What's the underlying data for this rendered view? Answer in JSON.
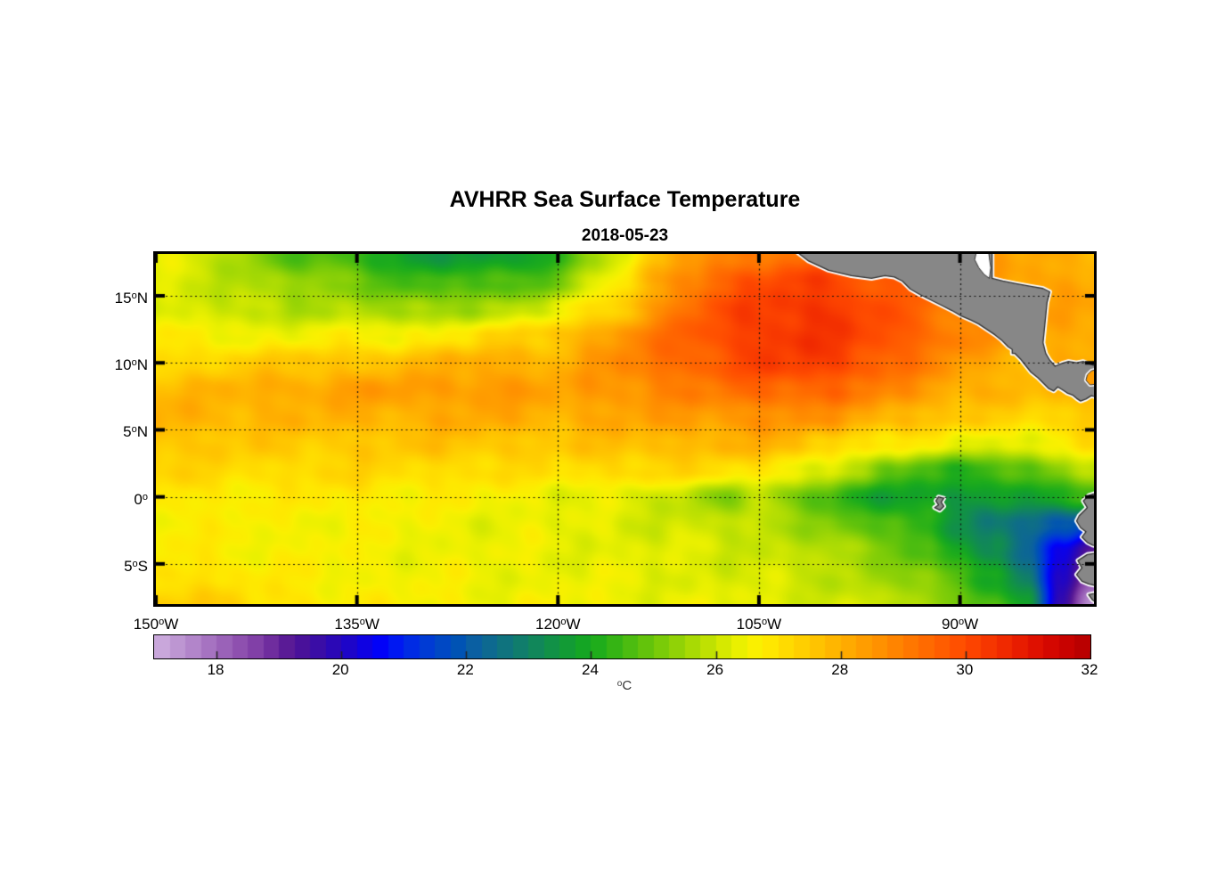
{
  "title": "AVHRR Sea Surface Temperature",
  "subtitle": "2018-05-23",
  "colorbar_unit_sup": "o",
  "colorbar_unit_main": "C",
  "chart_data": {
    "type": "heatmap",
    "title": "AVHRR Sea Surface Temperature",
    "date": "2018-05-23",
    "lon_range": [
      -150,
      -80
    ],
    "lat_range": [
      -8,
      18.125
    ],
    "grid_on": true,
    "axes": {
      "xticks": [
        {
          "lon": -150,
          "num": "150",
          "hem": "W"
        },
        {
          "lon": -135,
          "num": "135",
          "hem": "W"
        },
        {
          "lon": -120,
          "num": "120",
          "hem": "W"
        },
        {
          "lon": -105,
          "num": "105",
          "hem": "W"
        },
        {
          "lon": -90,
          "num": "90",
          "hem": "W"
        }
      ],
      "yticks": [
        {
          "lat": 15,
          "num": "15",
          "hem": "N"
        },
        {
          "lat": 10,
          "num": "10",
          "hem": "N"
        },
        {
          "lat": 5,
          "num": "5",
          "hem": "N"
        },
        {
          "lat": 0,
          "num": "0",
          "hem": ""
        },
        {
          "lat": -5,
          "num": "5",
          "hem": "S"
        }
      ],
      "deg_symbol": "o"
    },
    "colormap": {
      "min": 17,
      "max": 32,
      "step": 0.25,
      "colors": [
        "#C9A7DB",
        "#BD96D2",
        "#B285CA",
        "#A673C1",
        "#9A62B8",
        "#8E50AF",
        "#8140A7",
        "#6F2D9E",
        "#5A1B96",
        "#49119A",
        "#3A0DA6",
        "#2B08B6",
        "#1D05C9",
        "#0F02E2",
        "#0202F8",
        "#0018F2",
        "#002BE4",
        "#003BD4",
        "#0048C4",
        "#0053B4",
        "#0A5FA2",
        "#0D6990",
        "#0F737E",
        "#107D6C",
        "#11875A",
        "#119147",
        "#129B35",
        "#14A524",
        "#1FAD1B",
        "#35B414",
        "#4CBC10",
        "#63C30B",
        "#7ACB08",
        "#91D206",
        "#A8DA04",
        "#BFE102",
        "#D6E900",
        "#EAF000",
        "#FAF000",
        "#FFE700",
        "#FFDB00",
        "#FFCF00",
        "#FFC300",
        "#FFB600",
        "#FFAA00",
        "#FF9D00",
        "#FF9100",
        "#FF8400",
        "#FF7700",
        "#FF6A00",
        "#FF5D00",
        "#FF5000",
        "#FC4300",
        "#F63600",
        "#F02900",
        "#E81C00",
        "#DF1000",
        "#D40700",
        "#C80200",
        "#BA0000",
        "#AA0000"
      ]
    },
    "colorbar": {
      "ticks": [
        18,
        20,
        22,
        24,
        26,
        28,
        30,
        32
      ],
      "unit": "°C"
    },
    "grid": {
      "lons": [
        -150,
        -147.5,
        -145,
        -142.5,
        -140,
        -137.5,
        -135,
        -132.5,
        -130,
        -127.5,
        -125,
        -122.5,
        -120,
        -117.5,
        -115,
        -112.5,
        -110,
        -107.5,
        -105,
        -102.5,
        -100,
        -97.5,
        -95,
        -92.5,
        -90,
        -87.5,
        -85,
        -82.5,
        -80
      ],
      "lats": [
        18,
        16,
        14,
        12,
        10,
        8,
        6,
        4,
        2,
        0,
        -2,
        -4,
        -6,
        -8
      ],
      "sst_c": [
        [
          26.2,
          26.0,
          25.7,
          25.2,
          24.6,
          24.5,
          24.2,
          23.8,
          23.4,
          23.6,
          23.4,
          23.6,
          24.0,
          25.5,
          26.3,
          27.5,
          28.3,
          28.8,
          29.0,
          29.2,
          29.3,
          29.3,
          29.2,
          28.8,
          28.4,
          28.2,
          28.0,
          27.9,
          27.9
        ],
        [
          26.2,
          26.0,
          25.8,
          25.5,
          25.3,
          25.2,
          25.0,
          24.6,
          24.3,
          24.5,
          24.4,
          24.6,
          25.0,
          26.0,
          26.8,
          28.0,
          29.0,
          29.5,
          29.8,
          30.0,
          30.0,
          29.8,
          29.5,
          29.2,
          28.8,
          28.4,
          28.2,
          28.1,
          28.0
        ],
        [
          26.2,
          26.0,
          25.9,
          25.7,
          25.6,
          25.7,
          25.6,
          25.4,
          25.3,
          25.5,
          25.6,
          25.8,
          26.2,
          26.8,
          27.5,
          28.5,
          29.3,
          29.8,
          30.1,
          30.3,
          30.3,
          30.0,
          29.6,
          29.2,
          28.8,
          28.4,
          28.2,
          28.1,
          28.1
        ],
        [
          26.6,
          26.5,
          26.5,
          26.4,
          26.4,
          26.5,
          26.5,
          26.5,
          26.6,
          26.8,
          27.0,
          27.2,
          27.5,
          28.0,
          28.5,
          29.0,
          29.5,
          29.9,
          30.2,
          30.3,
          30.2,
          30.0,
          29.7,
          29.3,
          28.8,
          28.4,
          28.1,
          28.0,
          28.0
        ],
        [
          27.0,
          27.1,
          27.2,
          27.3,
          27.4,
          27.5,
          27.5,
          27.6,
          27.7,
          27.9,
          28.0,
          27.9,
          27.8,
          28.2,
          28.7,
          29.1,
          29.4,
          29.7,
          30.0,
          30.1,
          30.1,
          29.8,
          29.3,
          28.8,
          28.3,
          27.9,
          27.7,
          27.9,
          27.8
        ],
        [
          27.6,
          27.7,
          27.8,
          27.9,
          28.0,
          28.1,
          28.2,
          28.3,
          28.2,
          28.3,
          28.4,
          28.2,
          28.1,
          28.3,
          28.5,
          28.7,
          28.8,
          29.0,
          29.3,
          29.4,
          29.3,
          29.0,
          28.6,
          28.3,
          28.0,
          27.8,
          27.7,
          27.6,
          27.7
        ],
        [
          27.9,
          27.8,
          27.8,
          27.8,
          27.8,
          27.8,
          27.8,
          27.9,
          27.9,
          28.0,
          28.0,
          27.9,
          27.9,
          28.0,
          28.1,
          28.2,
          28.3,
          28.4,
          28.5,
          28.5,
          28.4,
          28.1,
          27.8,
          27.6,
          27.4,
          27.2,
          27.1,
          27.2,
          27.4
        ],
        [
          27.6,
          27.4,
          27.4,
          27.4,
          27.3,
          27.4,
          27.4,
          27.4,
          27.5,
          27.5,
          27.5,
          27.4,
          27.4,
          27.5,
          27.6,
          27.7,
          27.7,
          27.8,
          27.8,
          27.7,
          27.2,
          26.9,
          26.7,
          26.5,
          26.3,
          26.2,
          26.3,
          26.5,
          26.9
        ],
        [
          27.2,
          27.1,
          27.0,
          27.0,
          27.0,
          27.1,
          27.1,
          27.0,
          27.0,
          27.0,
          27.0,
          26.9,
          26.9,
          27.0,
          27.1,
          27.1,
          27.0,
          26.9,
          26.8,
          26.5,
          26.0,
          25.4,
          24.8,
          24.4,
          24.2,
          24.3,
          24.6,
          25.2,
          25.8
        ],
        [
          26.8,
          26.7,
          26.7,
          26.6,
          26.6,
          26.7,
          26.7,
          26.6,
          26.6,
          26.5,
          26.5,
          26.4,
          26.3,
          26.2,
          26.1,
          25.9,
          25.6,
          25.2,
          25.6,
          25.0,
          24.4,
          23.9,
          23.7,
          23.6,
          23.4,
          23.5,
          23.7,
          24.0,
          24.3
        ],
        [
          26.6,
          26.6,
          26.5,
          26.5,
          26.4,
          26.5,
          26.5,
          26.4,
          26.4,
          26.3,
          26.3,
          26.3,
          26.2,
          26.2,
          26.1,
          26.0,
          25.9,
          25.8,
          25.7,
          25.5,
          25.2,
          24.6,
          24.5,
          24.0,
          23.3,
          22.7,
          22.3,
          21.8,
          21.3
        ],
        [
          26.6,
          26.6,
          26.6,
          26.5,
          26.5,
          26.5,
          26.4,
          26.4,
          26.4,
          26.3,
          26.3,
          26.3,
          26.3,
          26.2,
          26.2,
          26.1,
          26.1,
          26.0,
          25.9,
          25.8,
          25.6,
          25.3,
          25.0,
          24.5,
          23.8,
          23.0,
          22.0,
          20.5,
          19.0
        ],
        [
          26.9,
          27.0,
          26.8,
          26.7,
          26.6,
          26.5,
          26.5,
          26.4,
          26.4,
          26.4,
          26.3,
          26.3,
          26.3,
          26.3,
          26.2,
          26.2,
          26.1,
          26.1,
          26.0,
          25.9,
          25.8,
          25.6,
          25.4,
          25.0,
          24.5,
          23.8,
          22.8,
          20.0,
          17.8
        ],
        [
          27.3,
          27.4,
          27.1,
          26.9,
          26.8,
          26.7,
          26.6,
          26.5,
          26.5,
          26.5,
          26.4,
          26.4,
          26.4,
          26.4,
          26.3,
          26.3,
          26.3,
          26.2,
          26.2,
          26.1,
          26.0,
          25.9,
          25.7,
          25.4,
          25.0,
          24.5,
          23.5,
          19.5,
          17.2
        ]
      ]
    },
    "land_color": "#878787",
    "coast_halo_color": "#FFFFFF",
    "coast_line_color": "#2E2E2E",
    "land": {
      "central_america": [
        [
          -102.6,
          18.6
        ],
        [
          -101.3,
          17.6
        ],
        [
          -99.8,
          16.9
        ],
        [
          -98.1,
          16.5
        ],
        [
          -96.6,
          16.3
        ],
        [
          -95.6,
          16.5
        ],
        [
          -94.9,
          16.4
        ],
        [
          -94.3,
          16.1
        ],
        [
          -93.7,
          15.5
        ],
        [
          -93.0,
          15.1
        ],
        [
          -92.2,
          14.7
        ],
        [
          -91.4,
          14.3
        ],
        [
          -90.6,
          13.9
        ],
        [
          -89.9,
          13.5
        ],
        [
          -89.2,
          13.2
        ],
        [
          -88.6,
          12.9
        ],
        [
          -88.0,
          12.5
        ],
        [
          -87.4,
          12.1
        ],
        [
          -86.9,
          11.7
        ],
        [
          -86.4,
          11.2
        ],
        [
          -86.1,
          11.0
        ],
        [
          -86.1,
          10.7
        ],
        [
          -85.9,
          10.7
        ],
        [
          -85.5,
          10.3
        ],
        [
          -85.1,
          9.8
        ],
        [
          -84.7,
          9.3
        ],
        [
          -84.2,
          8.9
        ],
        [
          -83.8,
          8.5
        ],
        [
          -83.4,
          8.1
        ],
        [
          -83.0,
          7.9
        ],
        [
          -82.7,
          8.2
        ],
        [
          -82.3,
          7.95
        ],
        [
          -82.0,
          7.75
        ],
        [
          -81.6,
          7.6
        ],
        [
          -81.3,
          7.35
        ],
        [
          -81.0,
          7.15
        ],
        [
          -80.6,
          7.3
        ],
        [
          -80.2,
          7.55
        ],
        [
          -79.6,
          7.4
        ],
        [
          -79.6,
          9.7
        ],
        [
          -80.3,
          9.9
        ],
        [
          -80.8,
          10.1
        ],
        [
          -81.3,
          10.0
        ],
        [
          -81.9,
          10.1
        ],
        [
          -82.4,
          9.95
        ],
        [
          -82.9,
          9.75
        ],
        [
          -83.3,
          10.2
        ],
        [
          -83.6,
          10.7
        ],
        [
          -83.8,
          11.5
        ],
        [
          -83.7,
          12.5
        ],
        [
          -83.6,
          13.5
        ],
        [
          -83.5,
          14.5
        ],
        [
          -83.3,
          15.3
        ],
        [
          -83.8,
          15.55
        ],
        [
          -84.7,
          15.7
        ],
        [
          -85.8,
          15.9
        ],
        [
          -86.8,
          16.1
        ],
        [
          -87.6,
          16.3
        ],
        [
          -87.6,
          17.7
        ],
        [
          -87.6,
          18.6
        ]
      ],
      "south_america": [
        [
          [
            -79.5,
            0.4
          ],
          [
            -80.4,
            0.1
          ],
          [
            -80.8,
            -0.3
          ],
          [
            -80.5,
            -0.8
          ],
          [
            -81.1,
            -1.4
          ],
          [
            -81.3,
            -1.8
          ],
          [
            -81.0,
            -2.3
          ],
          [
            -80.6,
            -2.6
          ],
          [
            -80.9,
            -3.0
          ],
          [
            -80.5,
            -3.4
          ],
          [
            -80.1,
            -3.6
          ],
          [
            -79.5,
            -3.75
          ]
        ],
        [
          [
            -79.5,
            -4.15
          ],
          [
            -80.5,
            -4.3
          ],
          [
            -81.2,
            -4.75
          ],
          [
            -80.9,
            -5.3
          ],
          [
            -81.3,
            -5.8
          ],
          [
            -80.9,
            -6.3
          ],
          [
            -80.4,
            -6.5
          ],
          [
            -79.5,
            -6.7
          ]
        ],
        [
          [
            -79.5,
            -7.1
          ],
          [
            -80.4,
            -7.3
          ],
          [
            -80.1,
            -7.7
          ],
          [
            -79.5,
            -8.1
          ]
        ]
      ],
      "galapagos": [
        [
          -91.6,
          0.0
        ],
        [
          -91.8,
          -0.3
        ],
        [
          -91.6,
          -0.6
        ],
        [
          -91.9,
          -0.8
        ],
        [
          -91.5,
          -1.0
        ],
        [
          -91.2,
          -0.7
        ],
        [
          -91.4,
          -0.4
        ],
        [
          -91.2,
          -0.1
        ]
      ],
      "gulf_of_honduras_water": [
        [
          -88.7,
          18.6
        ],
        [
          -88.9,
          17.7
        ],
        [
          -88.6,
          17.1
        ],
        [
          -88.2,
          16.6
        ],
        [
          -87.8,
          16.3
        ],
        [
          -87.7,
          17.1
        ],
        [
          -87.8,
          17.8
        ],
        [
          -87.9,
          18.6
        ]
      ],
      "gulf_of_panama_water": [
        [
          -79.5,
          9.6
        ],
        [
          -80.2,
          9.4
        ],
        [
          -80.5,
          9.1
        ],
        [
          -80.6,
          8.7
        ],
        [
          -80.3,
          8.35
        ],
        [
          -79.9,
          8.4
        ],
        [
          -79.5,
          8.6
        ]
      ]
    }
  }
}
